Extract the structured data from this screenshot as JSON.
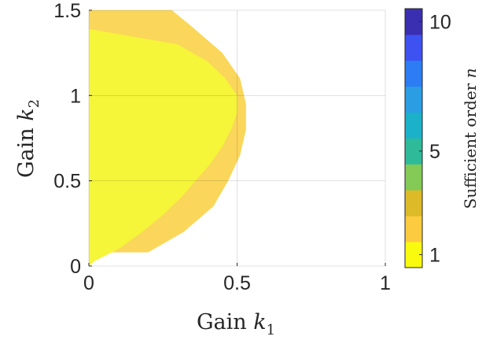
{
  "chart_data": {
    "type": "heatmap",
    "title": "",
    "xlabel": {
      "text": "Gain ",
      "var": "k",
      "sub": "1"
    },
    "ylabel": {
      "text": "Gain ",
      "var": "k",
      "sub": "2"
    },
    "xlim": [
      0,
      1
    ],
    "ylim": [
      0,
      1.5
    ],
    "xticks": [
      {
        "v": 0,
        "label": "0"
      },
      {
        "v": 0.5,
        "label": "0.5"
      },
      {
        "v": 1,
        "label": "1"
      }
    ],
    "yticks": [
      {
        "v": 0,
        "label": "0"
      },
      {
        "v": 0.5,
        "label": "0.5"
      },
      {
        "v": 1,
        "label": "1"
      },
      {
        "v": 1.5,
        "label": "1.5"
      }
    ],
    "grid": true,
    "regions": [
      {
        "name": "order 2",
        "value": 2,
        "color": "#FAD65A",
        "boundary_k2": [
          0.08,
          0.2,
          0.35,
          0.5,
          0.65,
          0.8,
          0.95,
          1.1,
          1.25,
          1.4,
          1.5
        ],
        "boundary_k1": [
          0.2,
          0.32,
          0.42,
          0.47,
          0.51,
          0.53,
          0.53,
          0.51,
          0.45,
          0.35,
          0.28
        ]
      },
      {
        "name": "order 1",
        "value": 1,
        "color": "#F5F53A",
        "boundary_k2": [
          0.0,
          0.03,
          0.1,
          0.2,
          0.3,
          0.4,
          0.5,
          0.6,
          0.7,
          0.8,
          0.9,
          1.0,
          1.1,
          1.2,
          1.3,
          1.39
        ],
        "boundary_k1": [
          0.0,
          0.02,
          0.1,
          0.18,
          0.25,
          0.31,
          0.36,
          0.41,
          0.45,
          0.48,
          0.5,
          0.5,
          0.46,
          0.4,
          0.3,
          0.0
        ]
      }
    ],
    "colorbar": {
      "label": {
        "text": "Sufficient order ",
        "var": "n"
      },
      "levels": [
        1,
        2,
        3,
        4,
        5,
        6,
        7,
        8,
        9,
        10
      ],
      "colors": [
        "#F9FB0E",
        "#FCCB3F",
        "#DCBA28",
        "#83CA56",
        "#2DBB9A",
        "#1BB2C9",
        "#2A9DE3",
        "#2C7DF3",
        "#3E52F2",
        "#3A2FB0"
      ],
      "ticks": [
        {
          "v": 1,
          "label": "1"
        },
        {
          "v": 5,
          "label": "5"
        },
        {
          "v": 10,
          "label": "10"
        }
      ]
    }
  }
}
